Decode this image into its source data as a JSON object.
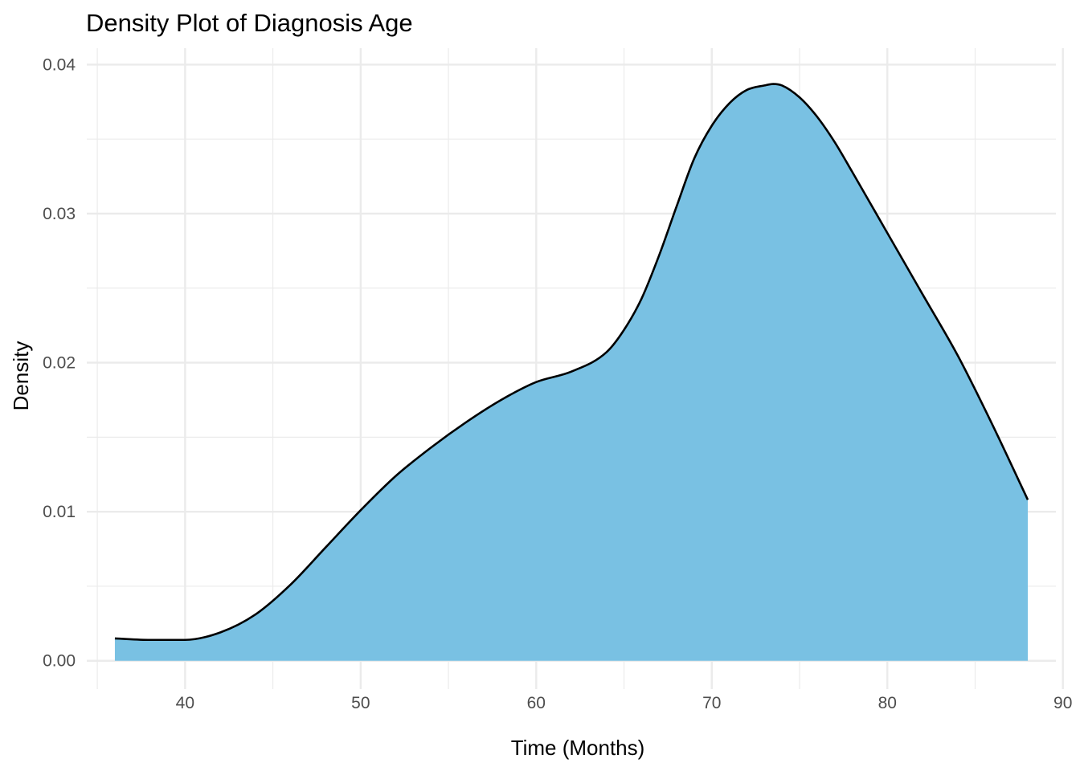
{
  "chart_data": {
    "type": "area",
    "title": "Density Plot of Diagnosis Age",
    "xlabel": "Time (Months)",
    "ylabel": "Density",
    "xlim": [
      34.4,
      89.6
    ],
    "ylim": [
      -0.0019,
      0.0411
    ],
    "x_ticks": [
      40,
      50,
      60,
      70,
      80,
      90
    ],
    "x_tick_labels": [
      "40",
      "50",
      "60",
      "70",
      "80",
      "90"
    ],
    "y_ticks": [
      0,
      0.01,
      0.02,
      0.03,
      0.04
    ],
    "y_tick_labels": [
      "0.00",
      "0.01",
      "0.02",
      "0.03",
      "0.04"
    ],
    "grid": true,
    "fill_color": "#79C1E3",
    "line_color": "#000000",
    "series": [
      {
        "x": [
          36,
          38,
          40,
          42,
          44,
          46,
          48,
          50,
          52,
          54,
          56,
          58,
          60,
          62,
          64,
          65,
          66,
          67,
          68,
          69,
          70,
          71,
          72,
          73,
          73.5,
          74,
          75,
          76,
          77,
          78,
          80,
          82,
          84,
          86,
          88
        ],
        "y": [
          0.0015,
          0.0014,
          0.0014,
          0.0019,
          0.0031,
          0.0051,
          0.0076,
          0.0101,
          0.0124,
          0.0143,
          0.016,
          0.0175,
          0.0187,
          0.0194,
          0.0207,
          0.0222,
          0.0243,
          0.0272,
          0.0305,
          0.0337,
          0.0359,
          0.0374,
          0.0383,
          0.0386,
          0.0387,
          0.0386,
          0.0378,
          0.0365,
          0.0348,
          0.0328,
          0.0287,
          0.0246,
          0.0205,
          0.0158,
          0.0108
        ]
      }
    ]
  }
}
